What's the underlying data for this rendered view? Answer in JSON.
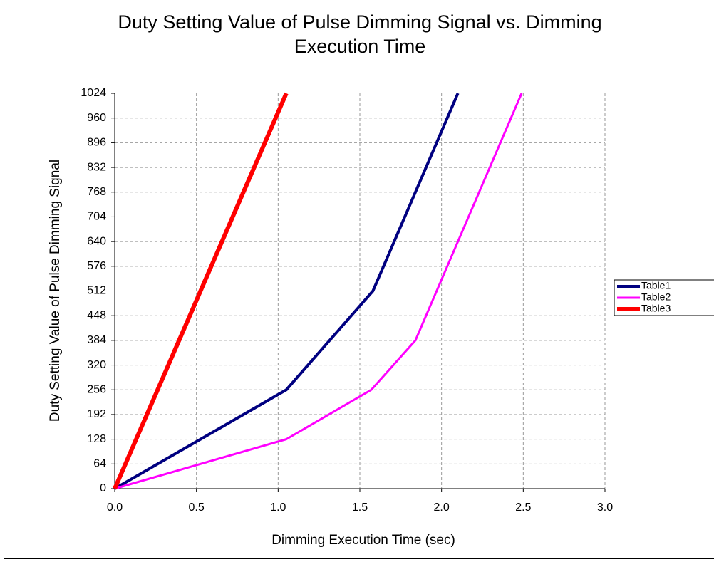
{
  "chart_data": {
    "type": "line",
    "title": "Duty Setting Value of Pulse Dimming Signal vs. Dimming Execution Time",
    "x_label": "Dimming Execution Time (sec)",
    "y_label": "Duty Setting Value of Pulse Dimming Signal",
    "xlim": [
      0,
      3
    ],
    "ylim": [
      0,
      1024
    ],
    "xticks": [
      {
        "value": 0,
        "label": "0.0"
      },
      0.5,
      {
        "value": 1,
        "label": "1.0"
      },
      1.5,
      {
        "value": 2,
        "label": "2.0"
      },
      2.5,
      {
        "value": 3,
        "label": "3.0"
      }
    ],
    "yticks": [
      0,
      64,
      128,
      192,
      256,
      320,
      384,
      448,
      512,
      576,
      640,
      704,
      768,
      832,
      896,
      960,
      1024
    ],
    "grid": true,
    "legend": "right",
    "series": [
      {
        "name": "Table1",
        "color": "#000080",
        "x": [
          0,
          1.05,
          1.58,
          2.1
        ],
        "values": [
          0,
          256,
          512,
          1024
        ]
      },
      {
        "name": "Table2",
        "color": "#ff00ff",
        "x": [
          0,
          1.05,
          1.57,
          1.84,
          2.49
        ],
        "values": [
          0,
          128,
          256,
          384,
          1024
        ]
      },
      {
        "name": "Table3",
        "color": "#ff0000",
        "x": [
          0,
          1.05
        ],
        "values": [
          0,
          1024
        ]
      }
    ]
  }
}
